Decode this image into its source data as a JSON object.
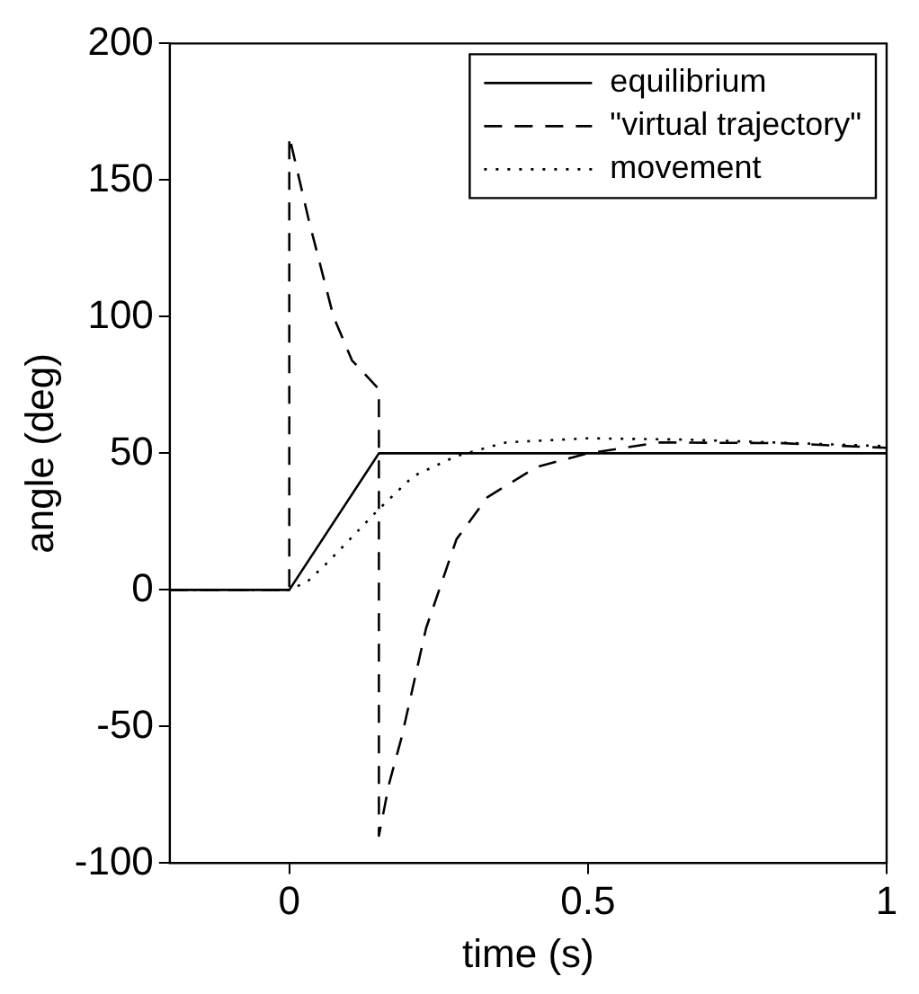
{
  "chart_data": {
    "type": "line",
    "xlabel": "time (s)",
    "ylabel": "angle (deg)",
    "xlim": [
      -0.2,
      1
    ],
    "xticks": [
      0,
      0.5,
      1
    ],
    "ylim": [
      -100,
      200
    ],
    "yticks": [
      -100,
      -50,
      0,
      50,
      100,
      150,
      200
    ],
    "grid": false,
    "legend": "top right",
    "marker": "none",
    "series": [
      {
        "name": "equilibrium",
        "color": "#000000",
        "line_style": "solid",
        "x": [
          -0.2,
          0,
          0.15,
          1
        ],
        "values": [
          0,
          0,
          50,
          50
        ]
      },
      {
        "name": "\"virtual trajectory\"",
        "color": "#000000",
        "line_style": "dashed",
        "x": [
          -0.2,
          0,
          0,
          0.033,
          0.074,
          0.105,
          0.15,
          0.15,
          0.167,
          0.188,
          0.229,
          0.28,
          0.332,
          0.414,
          0.5,
          0.62,
          0.827,
          1
        ],
        "values": [
          0,
          0,
          166,
          135,
          100,
          84,
          73.5,
          -90,
          -71,
          -54,
          -14,
          18.6,
          34,
          45,
          50,
          54,
          53.7,
          52
        ]
      },
      {
        "name": "movement",
        "color": "#000000",
        "line_style": "dotted",
        "x": [
          -0.2,
          0,
          0.03,
          0.064,
          0.15,
          0.208,
          0.28,
          0.363,
          0.5,
          0.67,
          1
        ],
        "values": [
          0,
          0,
          3,
          10,
          29.6,
          41.7,
          49,
          54,
          55.5,
          55,
          52.6
        ]
      }
    ]
  }
}
